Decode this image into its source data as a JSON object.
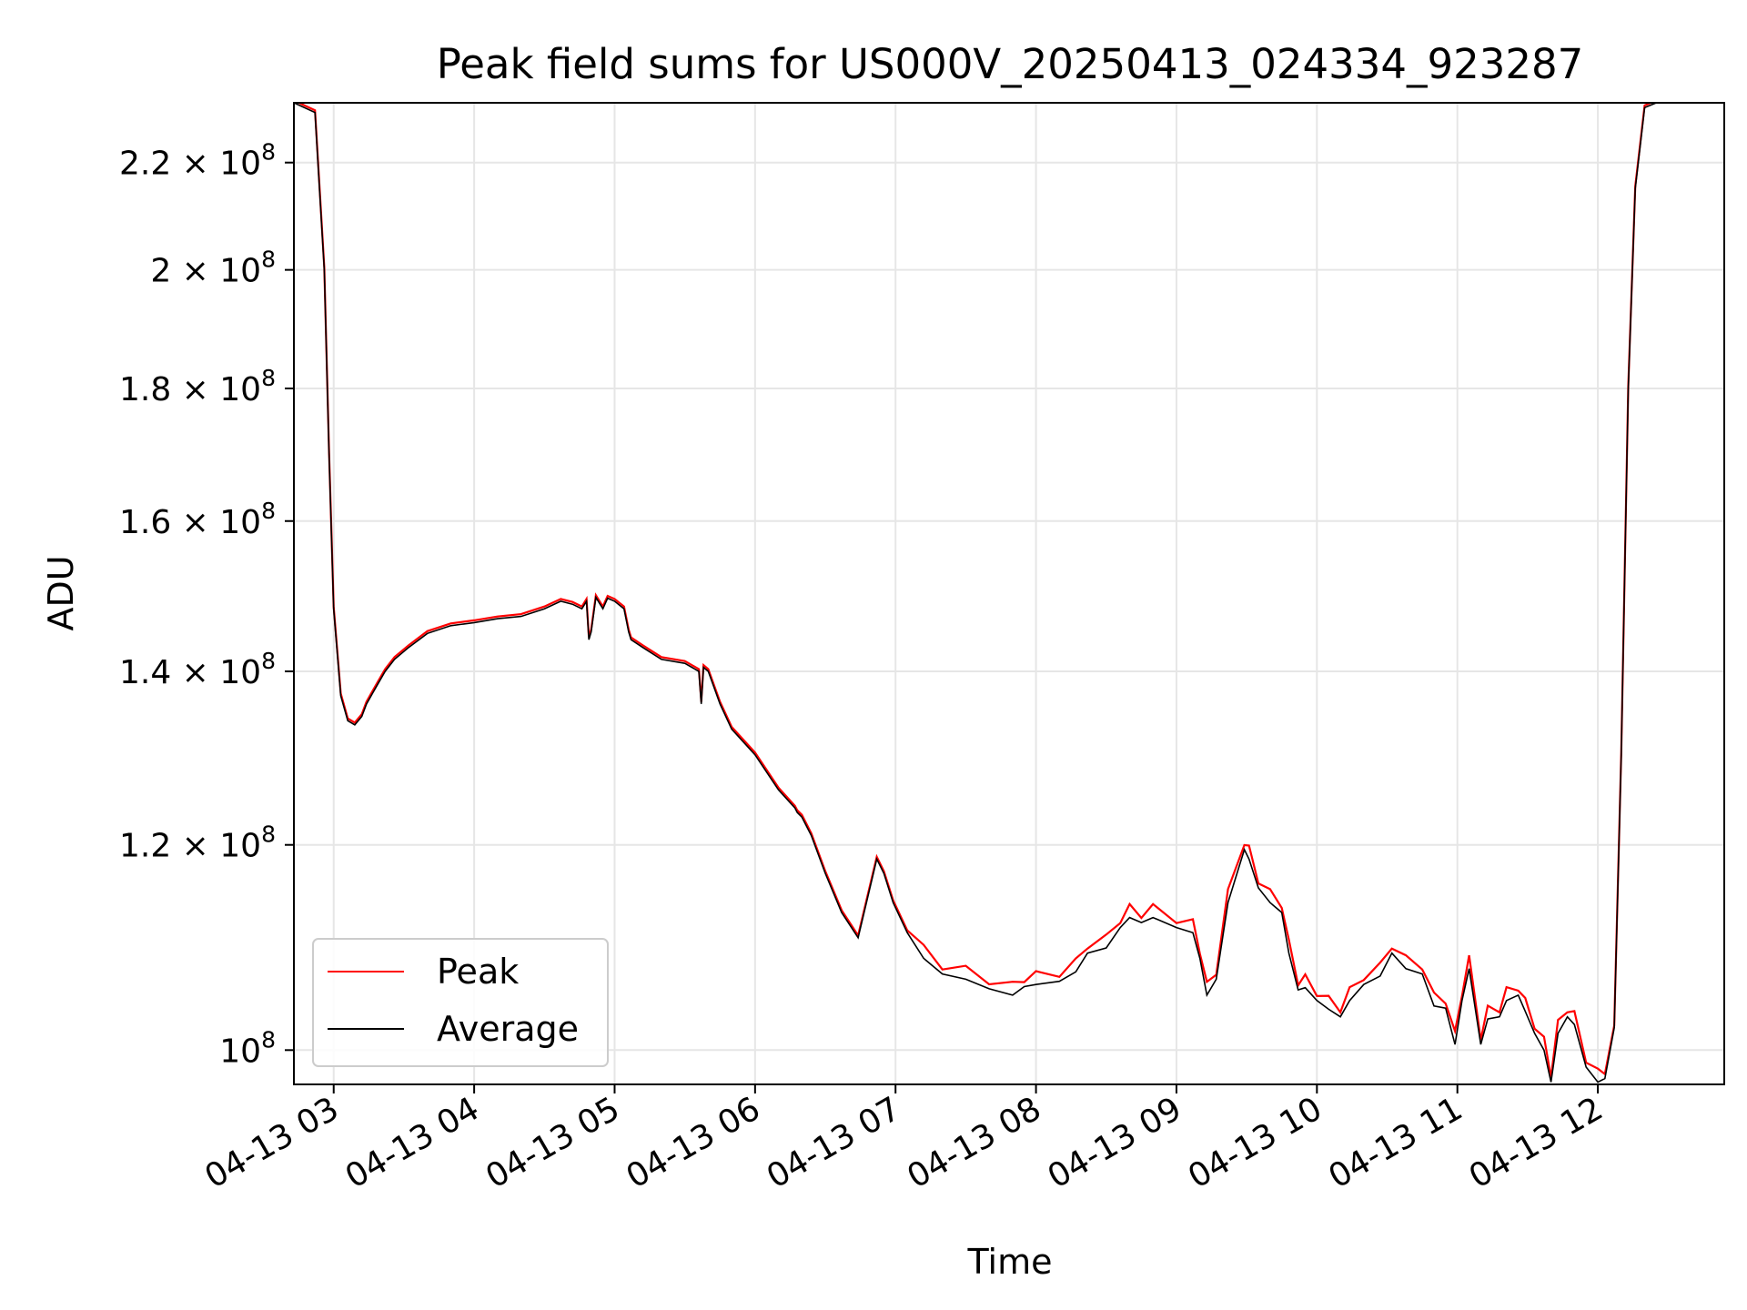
{
  "chart_data": {
    "type": "line",
    "title": "Peak field sums for US000V_20250413_024334_923287",
    "xlabel": "Time",
    "ylabel": "ADU",
    "yscale": "log",
    "grid": true,
    "legend_position": "lower-left",
    "xlim": [
      "04-13 02:43",
      "04-13 12:54"
    ],
    "ylim": [
      97000000,
      232000000
    ],
    "xticks": [
      {
        "t": "04-13 03:00",
        "label": "04-13 03"
      },
      {
        "t": "04-13 04:00",
        "label": "04-13 04"
      },
      {
        "t": "04-13 05:00",
        "label": "04-13 05"
      },
      {
        "t": "04-13 06:00",
        "label": "04-13 06"
      },
      {
        "t": "04-13 07:00",
        "label": "04-13 07"
      },
      {
        "t": "04-13 08:00",
        "label": "04-13 08"
      },
      {
        "t": "04-13 09:00",
        "label": "04-13 09"
      },
      {
        "t": "04-13 10:00",
        "label": "04-13 10"
      },
      {
        "t": "04-13 11:00",
        "label": "04-13 11"
      },
      {
        "t": "04-13 12:00",
        "label": "04-13 12"
      }
    ],
    "yticks": [
      {
        "v": 100000000,
        "mant": "",
        "exp": "8"
      },
      {
        "v": 120000000,
        "mant": "1.2",
        "exp": "8"
      },
      {
        "v": 140000000,
        "mant": "1.4",
        "exp": "8"
      },
      {
        "v": 160000000,
        "mant": "1.6",
        "exp": "8"
      },
      {
        "v": 180000000,
        "mant": "1.8",
        "exp": "8"
      },
      {
        "v": 200000000,
        "mant": "2",
        "exp": "8"
      },
      {
        "v": 220000000,
        "mant": "2.2",
        "exp": "8"
      }
    ],
    "series": [
      {
        "name": "Average",
        "color": "#000000"
      },
      {
        "name": "Peak",
        "color": "#ff0000"
      }
    ],
    "x": [
      "04-13 02:43",
      "04-13 02:52",
      "04-13 02:56",
      "04-13 02:58",
      "04-13 03:00",
      "04-13 03:03",
      "04-13 03:06",
      "04-13 03:09",
      "04-13 03:12",
      "04-13 03:14",
      "04-13 03:16",
      "04-13 03:19",
      "04-13 03:22",
      "04-13 03:26",
      "04-13 03:32",
      "04-13 03:40",
      "04-13 03:50",
      "04-13 04:00",
      "04-13 04:10",
      "04-13 04:20",
      "04-13 04:30",
      "04-13 04:37",
      "04-13 04:42",
      "04-13 04:46",
      "04-13 04:48",
      "04-13 04:49",
      "04-13 04:50",
      "04-13 04:52",
      "04-13 04:55",
      "04-13 04:57",
      "04-13 05:00",
      "04-13 05:04",
      "04-13 05:06",
      "04-13 05:07",
      "04-13 05:12",
      "04-13 05:20",
      "04-13 05:30",
      "04-13 05:36",
      "04-13 05:37",
      "04-13 05:38",
      "04-13 05:40",
      "04-13 05:45",
      "04-13 05:50",
      "04-13 06:00",
      "04-13 06:10",
      "04-13 06:17",
      "04-13 06:18",
      "04-13 06:20",
      "04-13 06:24",
      "04-13 06:30",
      "04-13 06:37",
      "04-13 06:44",
      "04-13 06:52",
      "04-13 06:55",
      "04-13 06:59",
      "04-13 07:05",
      "04-13 07:12",
      "04-13 07:20",
      "04-13 07:30",
      "04-13 07:40",
      "04-13 07:50",
      "04-13 07:55",
      "04-13 08:00",
      "04-13 08:10",
      "04-13 08:17",
      "04-13 08:22",
      "04-13 08:30",
      "04-13 08:36",
      "04-13 08:40",
      "04-13 08:45",
      "04-13 08:50",
      "04-13 09:00",
      "04-13 09:07",
      "04-13 09:10",
      "04-13 09:13",
      "04-13 09:17",
      "04-13 09:22",
      "04-13 09:29",
      "04-13 09:31",
      "04-13 09:35",
      "04-13 09:40",
      "04-13 09:45",
      "04-13 09:48",
      "04-13 09:52",
      "04-13 09:55",
      "04-13 10:00",
      "04-13 10:05",
      "04-13 10:10",
      "04-13 10:14",
      "04-13 10:20",
      "04-13 10:27",
      "04-13 10:32",
      "04-13 10:38",
      "04-13 10:45",
      "04-13 10:50",
      "04-13 10:55",
      "04-13 10:59",
      "04-13 11:02",
      "04-13 11:05",
      "04-13 11:10",
      "04-13 11:13",
      "04-13 11:18",
      "04-13 11:21",
      "04-13 11:26",
      "04-13 11:29",
      "04-13 11:33",
      "04-13 11:37",
      "04-13 11:40",
      "04-13 11:43",
      "04-13 11:47",
      "04-13 11:50",
      "04-13 11:55",
      "04-13 12:00",
      "04-13 12:03",
      "04-13 12:07",
      "04-13 12:10",
      "04-13 12:13",
      "04-13 12:16",
      "04-13 12:20",
      "04-13 12:25",
      "04-13 12:30",
      "04-13 12:35",
      "04-13 12:40",
      "04-13 12:54"
    ],
    "y": [
      232000000,
      230000000,
      200000000,
      170000000,
      148000000,
      137000000,
      134000000,
      133500000,
      134500000,
      136000000,
      137000000,
      138500000,
      140000000,
      141500000,
      143000000,
      144800000,
      145800000,
      146200000,
      146700000,
      147000000,
      148000000,
      149000000,
      148600000,
      148000000,
      149000000,
      144000000,
      145000000,
      149500000,
      148000000,
      149400000,
      149000000,
      148000000,
      145000000,
      144000000,
      143000000,
      141500000,
      141000000,
      140000000,
      136000000,
      140500000,
      140000000,
      136000000,
      133000000,
      130000000,
      126000000,
      124000000,
      123500000,
      123000000,
      121000000,
      117000000,
      113000000,
      110500000,
      118500000,
      117000000,
      114000000,
      111000000,
      108500000,
      107000000,
      106500000,
      105600000,
      105000000,
      105800000,
      106000000,
      106300000,
      107200000,
      109000000,
      109500000,
      111500000,
      112500000,
      112000000,
      112500000,
      111500000,
      111000000,
      108500000,
      105000000,
      106500000,
      114000000,
      119500000,
      118500000,
      115500000,
      114000000,
      113000000,
      109000000,
      105500000,
      105700000,
      104500000,
      103700000,
      103000000,
      104500000,
      106000000,
      106800000,
      109000000,
      107500000,
      107000000,
      104000000,
      103800000,
      100500000,
      104500000,
      107500000,
      100500000,
      102800000,
      103000000,
      104500000,
      105000000,
      103500000,
      101500000,
      100000000,
      97200000,
      101500000,
      103000000,
      102300000,
      98500000,
      97200000,
      97500000,
      102000000,
      130000000,
      180000000,
      215000000,
      231000000,
      232000000,
      232000000,
      232000000,
      232000000,
      232000000
    ],
    "legend": [
      {
        "label": "Peak",
        "color": "#ff0000"
      },
      {
        "label": "Average",
        "color": "#000000"
      }
    ]
  }
}
